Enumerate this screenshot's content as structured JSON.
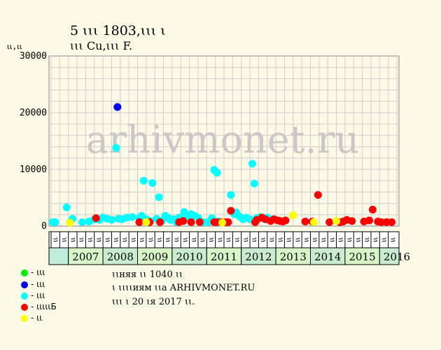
{
  "header": {
    "title_line1": "5 ꙇꙇꙇ 1803,ꙇꙇꙇ ꙇ",
    "title_line2": "ꙇꙇꙇ Cu,ꙇꙇꙇ F.",
    "y_unit": "ꙇꙇ,ꙇꙇ"
  },
  "watermark": "arhivmonet.ru",
  "legend": [
    {
      "label": "- ꙇꙇꙇ",
      "color": "#00ee00"
    },
    {
      "label": "- ꙇꙇꙇ",
      "color": "#0000ee"
    },
    {
      "label": "- ꙇꙇꙇ",
      "color": "#00ffff"
    },
    {
      "label": "- ꙇꙇꙇꙇꙇБ",
      "color": "#ff0000"
    },
    {
      "label": "- ꙇꙇ",
      "color": "#ffff00"
    }
  ],
  "notes": [
    "ꙇꙇняя ꙇꙇ 1040 ꙇꙇ",
    "ꙇ ꙇꙇꙇꙇиям ꙇꙇа ARHIVMONET.RU",
    "ꙇꙇꙇ ꙇ 20 ꙇя 2017 ꙇꙇ."
  ],
  "chart_data": {
    "type": "scatter",
    "ylim": [
      0,
      30000
    ],
    "yticks": [
      0,
      10000,
      20000,
      30000
    ],
    "grid": true,
    "quarters": [
      "ꙇꙇ",
      "ꙇꙇ",
      "ꙇꙇ",
      "ꙇꙇ"
    ],
    "years": [
      "2007",
      "2008",
      "2009",
      "2010",
      "2011",
      "2012",
      "2013",
      "2014",
      "2015",
      "2016"
    ],
    "colors": {
      "green": "#00ee00",
      "blue": "#0000ee",
      "cyan": "#00ffff",
      "red": "#ff0000",
      "yellow": "#ffff00"
    },
    "series": [
      {
        "color": "cyan",
        "points": [
          [
            2007.05,
            700
          ],
          [
            2007.12,
            700
          ],
          [
            2007.45,
            3300
          ],
          [
            2007.55,
            700
          ],
          [
            2007.62,
            1300
          ],
          [
            2007.9,
            700
          ],
          [
            2008.1,
            800
          ],
          [
            2008.25,
            1200
          ],
          [
            2008.4,
            1100
          ],
          [
            2008.5,
            1500
          ],
          [
            2008.62,
            1300
          ],
          [
            2008.75,
            1100
          ],
          [
            2008.88,
            13800
          ],
          [
            2008.95,
            1300
          ],
          [
            2009.05,
            1200
          ],
          [
            2009.2,
            1500
          ],
          [
            2009.35,
            1600
          ],
          [
            2009.55,
            1400
          ],
          [
            2009.62,
            1800
          ],
          [
            2009.68,
            8000
          ],
          [
            2009.75,
            1200
          ],
          [
            2009.85,
            900
          ],
          [
            2009.93,
            7600
          ],
          [
            2010.05,
            1300
          ],
          [
            2010.12,
            5100
          ],
          [
            2010.2,
            900
          ],
          [
            2010.3,
            1800
          ],
          [
            2010.38,
            1500
          ],
          [
            2010.45,
            1100
          ],
          [
            2010.55,
            1200
          ],
          [
            2010.62,
            700
          ],
          [
            2010.7,
            1500
          ],
          [
            2010.78,
            1000
          ],
          [
            2010.85,
            2500
          ],
          [
            2010.92,
            1500
          ],
          [
            2011.05,
            2100
          ],
          [
            2011.15,
            1800
          ],
          [
            2011.25,
            1500
          ],
          [
            2011.3,
            900
          ],
          [
            2011.4,
            700
          ],
          [
            2011.55,
            700
          ],
          [
            2011.65,
            1400
          ],
          [
            2011.72,
            9900
          ],
          [
            2011.8,
            9400
          ],
          [
            2011.85,
            800
          ],
          [
            2011.9,
            700
          ],
          [
            2012.2,
            5500
          ],
          [
            2012.3,
            2100
          ],
          [
            2012.35,
            2400
          ],
          [
            2012.45,
            1700
          ],
          [
            2012.55,
            1200
          ],
          [
            2012.65,
            1500
          ],
          [
            2012.75,
            1200
          ],
          [
            2012.82,
            11000
          ],
          [
            2012.88,
            7500
          ],
          [
            2012.95,
            1400
          ],
          [
            2013.05,
            1600
          ],
          [
            2013.15,
            1300
          ],
          [
            2013.25,
            1500
          ],
          [
            2013.4,
            1200
          ]
        ]
      },
      {
        "color": "blue",
        "points": [
          [
            2008.92,
            21000
          ]
        ]
      },
      {
        "color": "red",
        "points": [
          [
            2008.3,
            1400
          ],
          [
            2009.55,
            700
          ],
          [
            2009.85,
            700
          ],
          [
            2010.15,
            700
          ],
          [
            2010.7,
            700
          ],
          [
            2010.82,
            900
          ],
          [
            2011.05,
            700
          ],
          [
            2011.3,
            700
          ],
          [
            2011.72,
            700
          ],
          [
            2011.78,
            700
          ],
          [
            2011.92,
            700
          ],
          [
            2012.05,
            700
          ],
          [
            2012.12,
            700
          ],
          [
            2012.2,
            2700
          ],
          [
            2012.9,
            700
          ],
          [
            2012.95,
            1100
          ],
          [
            2013.1,
            1500
          ],
          [
            2013.2,
            1200
          ],
          [
            2013.35,
            900
          ],
          [
            2013.45,
            1200
          ],
          [
            2013.55,
            1000
          ],
          [
            2013.62,
            900
          ],
          [
            2013.7,
            800
          ],
          [
            2013.78,
            1000
          ],
          [
            2014.35,
            800
          ],
          [
            2014.55,
            800
          ],
          [
            2014.72,
            5500
          ],
          [
            2015.05,
            700
          ],
          [
            2015.35,
            700
          ],
          [
            2015.45,
            800
          ],
          [
            2015.55,
            1100
          ],
          [
            2015.7,
            900
          ],
          [
            2016.05,
            800
          ],
          [
            2016.2,
            1000
          ],
          [
            2016.3,
            2900
          ],
          [
            2016.45,
            800
          ],
          [
            2016.55,
            700
          ],
          [
            2016.7,
            700
          ],
          [
            2016.85,
            700
          ]
        ]
      },
      {
        "color": "yellow",
        "points": [
          [
            2007.55,
            600
          ],
          [
            2009.75,
            700
          ],
          [
            2011.95,
            600
          ],
          [
            2014.0,
            1900
          ],
          [
            2014.6,
            700
          ],
          [
            2015.25,
            900
          ]
        ]
      }
    ]
  }
}
